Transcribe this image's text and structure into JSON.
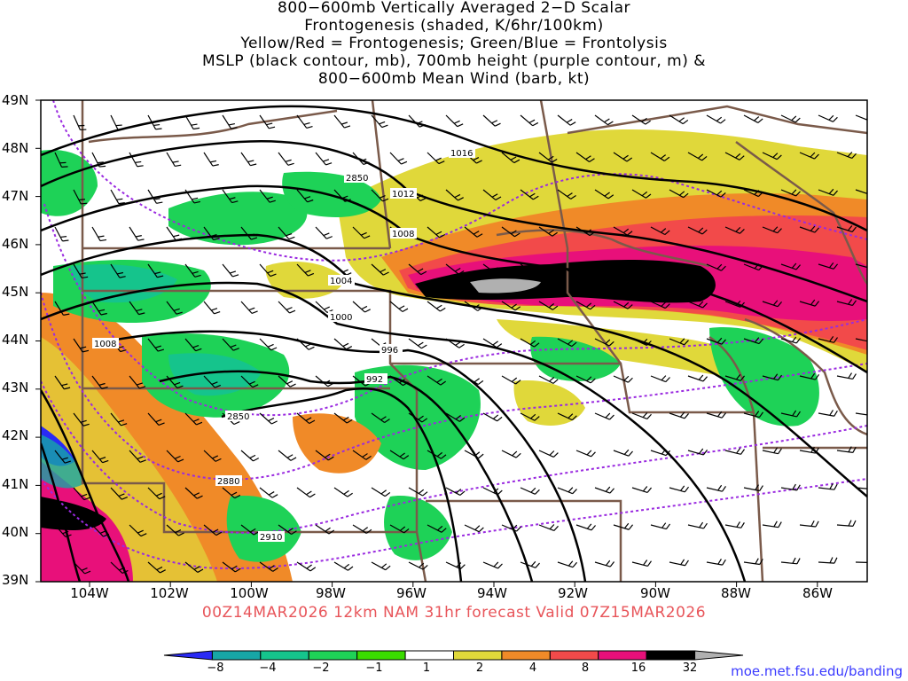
{
  "title": {
    "line1": "800−600mb Vertically Averaged 2−D Scalar",
    "line2": "Frontogenesis (shaded, K/6hr/100km)",
    "line3": "Yellow/Red = Frontogenesis;  Green/Blue = Frontolysis",
    "line4": "MSLP (black contour, mb), 700mb height (purple contour, m) &",
    "line5": "800−600mb Mean Wind (barb, kt)"
  },
  "valid_text": "00Z14MAR2026 12km NAM 31hr forecast Valid 07Z15MAR2026",
  "credit": "moe.met.fsu.edu/banding",
  "lat_labels": [
    "49N",
    "48N",
    "47N",
    "46N",
    "45N",
    "44N",
    "43N",
    "42N",
    "41N",
    "40N",
    "39N"
  ],
  "lon_labels": [
    "104W",
    "102W",
    "100W",
    "98W",
    "96W",
    "94W",
    "92W",
    "90W",
    "88W",
    "86W"
  ],
  "mslp_labels": [
    "1016",
    "1012",
    "1008",
    "1004",
    "1000",
    "996",
    "992",
    "1008"
  ],
  "height_labels": [
    "2850",
    "2850",
    "2880",
    "2910"
  ],
  "colorbar": {
    "labels": [
      "−8",
      "−4",
      "−2",
      "−1",
      "1",
      "2",
      "4",
      "8",
      "16",
      "32"
    ],
    "colors": [
      "#2a2af5",
      "#17a6a6",
      "#15c48c",
      "#1ed257",
      "#3adc00",
      "#ffffff",
      "#e0d83a",
      "#f08a28",
      "#f24a4a",
      "#e8107a",
      "#000000",
      "#b0b0b0"
    ]
  },
  "colors": {
    "state_borders": "#7a5a4a",
    "mslp": "#000000",
    "height": "#9a2ae0",
    "valid_text": "#e8555a",
    "credit": "#3a3aff"
  }
}
